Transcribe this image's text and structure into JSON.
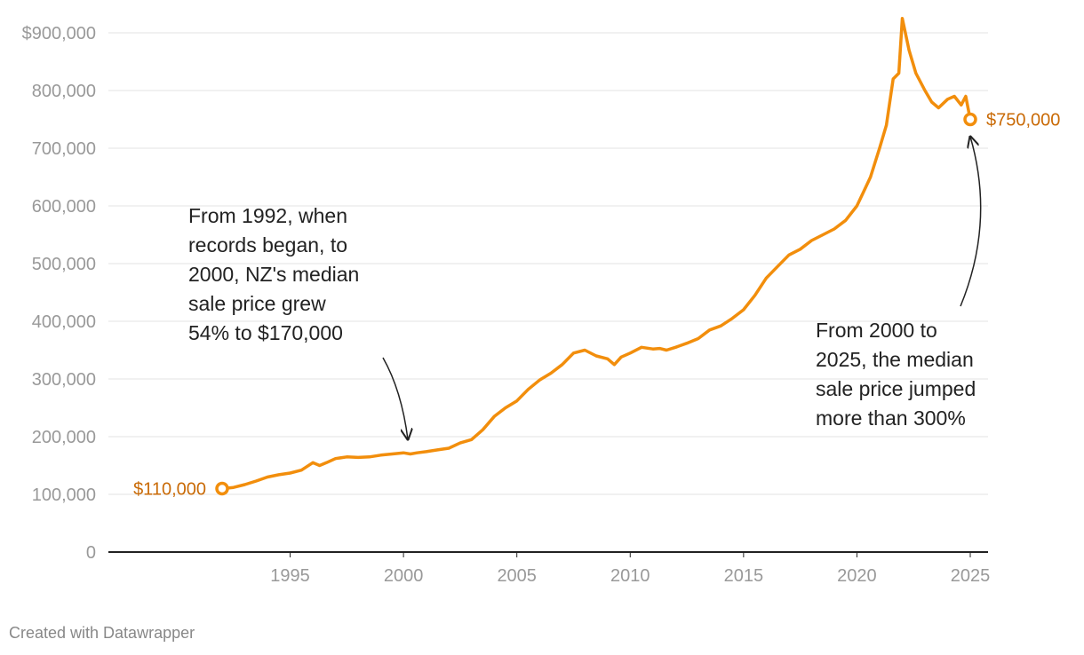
{
  "chart_data": {
    "type": "line",
    "title": "",
    "xlabel": "",
    "ylabel": "",
    "xlim": [
      1992,
      2025.5
    ],
    "ylim": [
      0,
      900000
    ],
    "grid": true,
    "y_ticks": [
      {
        "value": 900000,
        "label": "$900,000"
      },
      {
        "value": 800000,
        "label": "800,000"
      },
      {
        "value": 700000,
        "label": "700,000"
      },
      {
        "value": 600000,
        "label": "600,000"
      },
      {
        "value": 500000,
        "label": "500,000"
      },
      {
        "value": 400000,
        "label": "400,000"
      },
      {
        "value": 300000,
        "label": "300,000"
      },
      {
        "value": 200000,
        "label": "200,000"
      },
      {
        "value": 100000,
        "label": "100,000"
      },
      {
        "value": 0,
        "label": "0"
      }
    ],
    "x_ticks": [
      {
        "value": 1995,
        "label": "1995"
      },
      {
        "value": 2000,
        "label": "2000"
      },
      {
        "value": 2005,
        "label": "2005"
      },
      {
        "value": 2010,
        "label": "2010"
      },
      {
        "value": 2015,
        "label": "2015"
      },
      {
        "value": 2020,
        "label": "2020"
      },
      {
        "value": 2025,
        "label": "2025"
      }
    ],
    "series": [
      {
        "color": "#f28e0c",
        "x": [
          1992.0,
          1992.5,
          1993.0,
          1993.5,
          1994.0,
          1994.5,
          1995.0,
          1995.5,
          1996.0,
          1996.3,
          1996.6,
          1997.0,
          1997.5,
          1998.0,
          1998.5,
          1999.0,
          1999.5,
          2000.0,
          2000.3,
          2000.6,
          2001.0,
          2001.5,
          2002.0,
          2002.5,
          2003.0,
          2003.5,
          2004.0,
          2004.5,
          2005.0,
          2005.5,
          2006.0,
          2006.5,
          2007.0,
          2007.5,
          2008.0,
          2008.5,
          2009.0,
          2009.3,
          2009.6,
          2010.0,
          2010.5,
          2011.0,
          2011.3,
          2011.6,
          2012.0,
          2012.5,
          2013.0,
          2013.5,
          2014.0,
          2014.5,
          2015.0,
          2015.5,
          2016.0,
          2016.5,
          2017.0,
          2017.5,
          2018.0,
          2018.5,
          2019.0,
          2019.5,
          2020.0,
          2020.3,
          2020.6,
          2021.0,
          2021.3,
          2021.6,
          2021.85,
          2022.0,
          2022.3,
          2022.6,
          2023.0,
          2023.3,
          2023.6,
          2024.0,
          2024.3,
          2024.6,
          2024.8,
          2025.0
        ],
        "values": [
          110000,
          112000,
          117000,
          123000,
          130000,
          134000,
          137000,
          142000,
          155000,
          150000,
          155000,
          162000,
          165000,
          164000,
          165000,
          168000,
          170000,
          172000,
          170000,
          172000,
          174000,
          177000,
          180000,
          189000,
          195000,
          212000,
          235000,
          250000,
          262000,
          282000,
          298000,
          310000,
          325000,
          345000,
          350000,
          340000,
          335000,
          325000,
          338000,
          345000,
          355000,
          352000,
          353000,
          350000,
          355000,
          362000,
          370000,
          385000,
          392000,
          405000,
          420000,
          445000,
          475000,
          495000,
          515000,
          525000,
          540000,
          550000,
          560000,
          575000,
          600000,
          625000,
          650000,
          700000,
          740000,
          820000,
          830000,
          925000,
          870000,
          830000,
          800000,
          780000,
          770000,
          785000,
          790000,
          775000,
          790000,
          750000
        ]
      }
    ],
    "start_label": "$110,000",
    "end_label": "$750,000",
    "annotations": [
      {
        "lines": [
          "From 1992, when",
          "records began, to",
          "2000, NZ's median",
          "sale price grew",
          "54% to $170,000"
        ]
      },
      {
        "lines": [
          "From 2000 to",
          "2025, the median",
          "sale price jumped",
          "more than 300%"
        ]
      }
    ]
  },
  "footer": "Created with Datawrapper"
}
